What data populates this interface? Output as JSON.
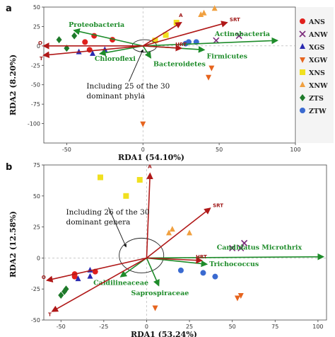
{
  "legend": [
    {
      "label": "ANS",
      "marker": "circle",
      "color": "#e0201c"
    },
    {
      "label": "ANW",
      "marker": "x",
      "color": "#7a2a7a"
    },
    {
      "label": "XGS",
      "marker": "triangle-up",
      "color": "#2a2ab0"
    },
    {
      "label": "XGW",
      "marker": "triangle-down",
      "color": "#e6641e"
    },
    {
      "label": "XNS",
      "marker": "square",
      "color": "#f0e020"
    },
    {
      "label": "XNW",
      "marker": "triangle-up",
      "color": "#f0a040"
    },
    {
      "label": "ZTS",
      "marker": "diamond",
      "color": "#1e7a2a"
    },
    {
      "label": "ZTW",
      "marker": "circle",
      "color": "#3a6ad0"
    }
  ],
  "colors": {
    "env_vector": "#b01818",
    "taxa_vector": "#1e8c2a",
    "legend_panel": "#f4f4f4"
  },
  "chart_data": [
    {
      "type": "scatter",
      "panel": "a",
      "xlabel": "RDA1 (54.10%)",
      "ylabel": "RDA2 (8.20%)",
      "xlim": [
        -65,
        100
      ],
      "ylim": [
        -125,
        50
      ],
      "xticks": [
        -50,
        0,
        50,
        100
      ],
      "yticks": [
        50,
        25,
        0,
        -25,
        -50,
        -75,
        -100
      ],
      "ellipse": {
        "cx": 1,
        "cy": 0,
        "rx": 8,
        "ry": 8
      },
      "annotation": {
        "lines": [
          "Including 25 of the 30",
          "dominant phyla"
        ],
        "x": -37,
        "y": -55,
        "arrow_to": [
          0,
          -5
        ]
      },
      "env_vectors": [
        {
          "name": "A",
          "x": 25,
          "y": 30
        },
        {
          "name": "SRT",
          "x": 55,
          "y": 30
        },
        {
          "name": "HRT",
          "x": 25,
          "y": -3
        },
        {
          "name": "O",
          "x": -65,
          "y": 0
        },
        {
          "name": "T",
          "x": -65,
          "y": -12
        }
      ],
      "taxa_vectors": [
        {
          "name": "Proteobacteria",
          "x": -45,
          "y": 20
        },
        {
          "name": "Actinobacteria",
          "x": 88,
          "y": 7
        },
        {
          "name": "Chloroflexi",
          "x": -28,
          "y": -10
        },
        {
          "name": "Firmicutes",
          "x": 40,
          "y": -5
        },
        {
          "name": "Bacteroidetes",
          "x": 5,
          "y": -15
        }
      ],
      "points": [
        {
          "group": "ANS",
          "x": -32,
          "y": 13
        },
        {
          "group": "ANS",
          "x": -38,
          "y": 5
        },
        {
          "group": "ANS",
          "x": -20,
          "y": 8
        },
        {
          "group": "ANS",
          "x": -35,
          "y": -5
        },
        {
          "group": "ANW",
          "x": 48,
          "y": 7
        },
        {
          "group": "ANW",
          "x": 63,
          "y": 13
        },
        {
          "group": "XGS",
          "x": -25,
          "y": -5
        },
        {
          "group": "XGS",
          "x": -42,
          "y": -8
        },
        {
          "group": "XGS",
          "x": -33,
          "y": -10
        },
        {
          "group": "XGW",
          "x": 45,
          "y": -28
        },
        {
          "group": "XGW",
          "x": 43,
          "y": -40
        },
        {
          "group": "XGW",
          "x": 0,
          "y": -100
        },
        {
          "group": "XNS",
          "x": 22,
          "y": 30
        },
        {
          "group": "XNS",
          "x": 15,
          "y": 14
        },
        {
          "group": "XNS",
          "x": 8,
          "y": 7
        },
        {
          "group": "XNW",
          "x": 47,
          "y": 48
        },
        {
          "group": "XNW",
          "x": 40,
          "y": 42
        },
        {
          "group": "XNW",
          "x": 38,
          "y": 40
        },
        {
          "group": "ZTS",
          "x": -55,
          "y": 8
        },
        {
          "group": "ZTS",
          "x": -45,
          "y": 13
        },
        {
          "group": "ZTS",
          "x": -50,
          "y": -3
        },
        {
          "group": "ZTW",
          "x": 28,
          "y": 3
        },
        {
          "group": "ZTW",
          "x": 30,
          "y": 5
        },
        {
          "group": "ZTW",
          "x": 35,
          "y": 5
        }
      ]
    },
    {
      "type": "scatter",
      "panel": "b",
      "xlabel": "RDA1 (53.24%)",
      "ylabel": "RDA2 (12.58%)",
      "xlim": [
        -60,
        105
      ],
      "ylim": [
        -50,
        75
      ],
      "xticks": [
        -50,
        -25,
        0,
        25,
        50,
        75,
        100
      ],
      "yticks": [
        75,
        50,
        25,
        0,
        -25,
        -50
      ],
      "ellipse": {
        "cx": -3,
        "cy": 2,
        "rx": 13,
        "ry": 14
      },
      "annotation": {
        "lines": [
          "Including 26 of the 30",
          "dominant genera"
        ],
        "x": -47,
        "y": 35,
        "arrow_to": [
          -12,
          9
        ]
      },
      "env_vectors": [
        {
          "name": "A",
          "x": 2,
          "y": 68
        },
        {
          "name": "SRT",
          "x": 37,
          "y": 40
        },
        {
          "name": "HRT",
          "x": 32,
          "y": -2
        },
        {
          "name": "O",
          "x": -58,
          "y": -18
        },
        {
          "name": "T",
          "x": -55,
          "y": -43
        }
      ],
      "taxa_vectors": [
        {
          "name": "Candidatus Microthrix",
          "x": 103,
          "y": 1
        },
        {
          "name": "Trichococcus",
          "x": 35,
          "y": -5
        },
        {
          "name": "Caldilineaceae",
          "x": -15,
          "y": -15
        },
        {
          "name": "Saprospiraceae",
          "x": 7,
          "y": -22
        }
      ],
      "points": [
        {
          "group": "ANS",
          "x": -30,
          "y": -11
        },
        {
          "group": "ANS",
          "x": -42,
          "y": -15
        },
        {
          "group": "ANS",
          "x": -42,
          "y": -13
        },
        {
          "group": "ANW",
          "x": 57,
          "y": 12
        },
        {
          "group": "ANW",
          "x": 55,
          "y": 8
        },
        {
          "group": "ANW",
          "x": 50,
          "y": 8
        },
        {
          "group": "XGS",
          "x": -33,
          "y": -10
        },
        {
          "group": "XGS",
          "x": -33,
          "y": -15
        },
        {
          "group": "XGS",
          "x": -40,
          "y": -17
        },
        {
          "group": "XGW",
          "x": 53,
          "y": -32
        },
        {
          "group": "XGW",
          "x": 55,
          "y": -30
        },
        {
          "group": "XGW",
          "x": 5,
          "y": -40
        },
        {
          "group": "XNS",
          "x": -27,
          "y": 65
        },
        {
          "group": "XNS",
          "x": -4,
          "y": 63
        },
        {
          "group": "XNS",
          "x": -12,
          "y": 50
        },
        {
          "group": "XNW",
          "x": 15,
          "y": 23
        },
        {
          "group": "XNW",
          "x": 13,
          "y": 20
        },
        {
          "group": "XNW",
          "x": 25,
          "y": 20
        },
        {
          "group": "ZTS",
          "x": -48,
          "y": -27
        },
        {
          "group": "ZTS",
          "x": -50,
          "y": -30
        },
        {
          "group": "ZTS",
          "x": -47,
          "y": -25
        },
        {
          "group": "ZTW",
          "x": 20,
          "y": -10
        },
        {
          "group": "ZTW",
          "x": 33,
          "y": -12
        },
        {
          "group": "ZTW",
          "x": 40,
          "y": -15
        }
      ]
    }
  ]
}
